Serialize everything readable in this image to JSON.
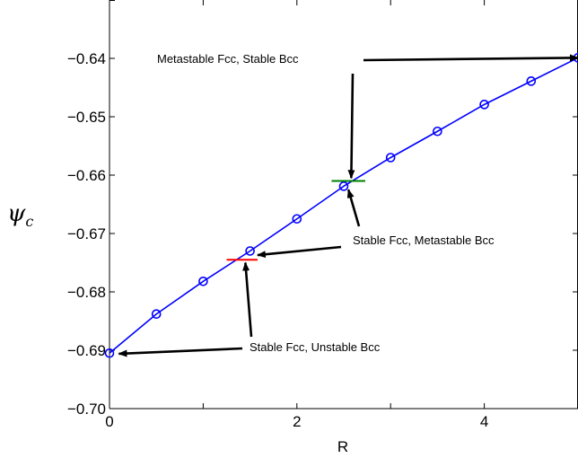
{
  "chart_data": {
    "type": "line",
    "xlabel": "R",
    "ylabel_symbol": "ψ",
    "ylabel_subscript": "c",
    "xlim": [
      0,
      5
    ],
    "ylim": [
      -0.7,
      -0.63
    ],
    "xticks": [
      0,
      2,
      4
    ],
    "yticks": [
      -0.7,
      -0.69,
      -0.68,
      -0.67,
      -0.66,
      -0.65,
      -0.64
    ],
    "ytick_labels": [
      "−0.70",
      "−0.69",
      "−0.68",
      "−0.67",
      "−0.66",
      "−0.65",
      "−0.64"
    ],
    "xtick_labels": [
      "0",
      "2",
      "4"
    ],
    "grid": false,
    "series": [
      {
        "color": "#0000ff",
        "marker": "circle",
        "x": [
          0,
          0.5,
          1.0,
          1.5,
          2.0,
          2.5,
          3.0,
          3.5,
          4.0,
          4.5,
          5.0
        ],
        "y": [
          -0.6905,
          -0.6838,
          -0.6782,
          -0.673,
          -0.6675,
          -0.6619,
          -0.657,
          -0.6525,
          -0.6479,
          -0.6439,
          -0.6399
        ]
      }
    ],
    "markers": [
      {
        "color": "#ff0000",
        "x": [
          1.25,
          1.58
        ],
        "y": -0.6745
      },
      {
        "color": "#008000",
        "x": [
          2.37,
          2.73
        ],
        "y": -0.661
      }
    ],
    "annotations": [
      {
        "text": "Metastable Fcc, Stable Bcc",
        "text_x": 2.6,
        "text_y": -0.639,
        "arrows_to": [
          [
            5.0,
            -0.6399
          ],
          [
            2.58,
            -0.6605
          ]
        ]
      },
      {
        "text": "Stable Fcc, Metastable Bcc",
        "text_x": 2.55,
        "text_y": -0.674,
        "arrows_to": [
          [
            1.58,
            -0.6737
          ],
          [
            2.55,
            -0.6625
          ]
        ]
      },
      {
        "text": "Stable Fcc, Unstable Bcc",
        "text_x": 1.45,
        "text_y": -0.6895,
        "arrows_to": [
          [
            0.1,
            -0.6906
          ],
          [
            1.45,
            -0.675
          ]
        ]
      }
    ]
  }
}
